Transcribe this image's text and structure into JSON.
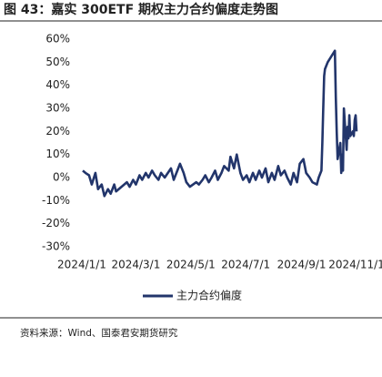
{
  "chart_data": {
    "type": "line",
    "title": "图 43：嘉实 300ETF 期权主力合约偏度走势图",
    "source": "资料来源：Wind、国泰君安期货研究",
    "x": [
      "2024-01-02",
      "2024-01-05",
      "2024-01-09",
      "2024-01-12",
      "2024-01-16",
      "2024-01-19",
      "2024-01-23",
      "2024-01-26",
      "2024-01-30",
      "2024-02-02",
      "2024-02-06",
      "2024-02-08",
      "2024-02-20",
      "2024-02-23",
      "2024-02-27",
      "2024-03-01",
      "2024-03-05",
      "2024-03-08",
      "2024-03-12",
      "2024-03-15",
      "2024-03-19",
      "2024-03-22",
      "2024-03-26",
      "2024-03-29",
      "2024-04-02",
      "2024-04-09",
      "2024-04-12",
      "2024-04-16",
      "2024-04-19",
      "2024-04-23",
      "2024-04-26",
      "2024-04-30",
      "2024-05-07",
      "2024-05-10",
      "2024-05-14",
      "2024-05-17",
      "2024-05-21",
      "2024-05-24",
      "2024-05-28",
      "2024-05-31",
      "2024-06-04",
      "2024-06-07",
      "2024-06-12",
      "2024-06-14",
      "2024-06-18",
      "2024-06-21",
      "2024-06-25",
      "2024-06-28",
      "2024-07-02",
      "2024-07-05",
      "2024-07-09",
      "2024-07-12",
      "2024-07-16",
      "2024-07-19",
      "2024-07-23",
      "2024-07-26",
      "2024-07-30",
      "2024-08-02",
      "2024-08-06",
      "2024-08-09",
      "2024-08-13",
      "2024-08-16",
      "2024-08-20",
      "2024-08-23",
      "2024-08-27",
      "2024-08-30",
      "2024-09-03",
      "2024-09-06",
      "2024-09-10",
      "2024-09-13",
      "2024-09-18",
      "2024-09-20",
      "2024-09-23",
      "2024-09-24",
      "2024-09-25",
      "2024-09-26",
      "2024-09-27",
      "2024-09-30",
      "2024-10-08",
      "2024-10-09",
      "2024-10-10",
      "2024-10-11",
      "2024-10-14",
      "2024-10-15",
      "2024-10-16",
      "2024-10-17",
      "2024-10-18",
      "2024-10-21",
      "2024-10-22",
      "2024-10-23",
      "2024-10-24",
      "2024-10-25",
      "2024-10-28",
      "2024-10-29",
      "2024-10-30",
      "2024-10-31",
      "2024-11-01"
    ],
    "series": [
      {
        "name": "主力合约偏度",
        "color": "#22356b",
        "values": [
          3,
          2,
          1,
          -3,
          2,
          -5,
          -3,
          -8,
          -5,
          -7,
          -3,
          -6,
          -2,
          -4,
          -1,
          -3,
          1,
          -1,
          2,
          0,
          3,
          1,
          -1,
          2,
          0,
          4,
          -1,
          3,
          6,
          2,
          -2,
          -4,
          -2,
          -3,
          -1,
          1,
          -2,
          0,
          3,
          -1,
          2,
          5,
          3,
          9,
          4,
          10,
          2,
          -1,
          1,
          -2,
          2,
          -1,
          3,
          0,
          4,
          -2,
          2,
          -1,
          5,
          1,
          3,
          0,
          -3,
          2,
          -2,
          6,
          8,
          2,
          0,
          -2,
          -3,
          0,
          3,
          15,
          30,
          44,
          47,
          50,
          55,
          35,
          20,
          8,
          15,
          2,
          10,
          3,
          30,
          12,
          22,
          17,
          27,
          18,
          20,
          18,
          25,
          27,
          20
        ]
      }
    ],
    "xlim": [
      "2024-01-01",
      "2024-11-01"
    ],
    "xticks": [
      {
        "value": "2024-01-01",
        "label": "2024/1/1"
      },
      {
        "value": "2024-03-01",
        "label": "2024/3/1"
      },
      {
        "value": "2024-05-01",
        "label": "2024/5/1"
      },
      {
        "value": "2024-07-01",
        "label": "2024/7/1"
      },
      {
        "value": "2024-09-01",
        "label": "2024/9/1"
      },
      {
        "value": "2024-11-01",
        "label": "2024/11/1"
      }
    ],
    "ylim": [
      -30,
      60
    ],
    "yticks": [
      {
        "value": -30,
        "label": "-30%"
      },
      {
        "value": -20,
        "label": "-20%"
      },
      {
        "value": -10,
        "label": "-10%"
      },
      {
        "value": 0,
        "label": "0%"
      },
      {
        "value": 10,
        "label": "10%"
      },
      {
        "value": 20,
        "label": "20%"
      },
      {
        "value": 30,
        "label": "30%"
      },
      {
        "value": 40,
        "label": "40%"
      },
      {
        "value": 50,
        "label": "50%"
      },
      {
        "value": 60,
        "label": "60%"
      }
    ],
    "legend": "bottom"
  }
}
